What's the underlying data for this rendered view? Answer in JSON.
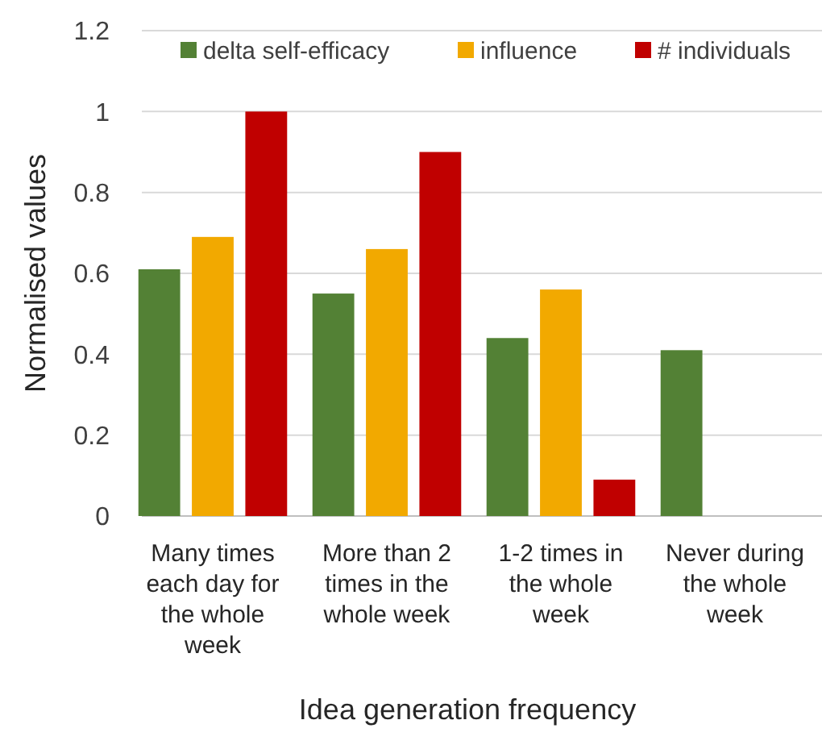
{
  "chart_data": {
    "type": "bar",
    "xlabel": "Idea generation frequency",
    "ylabel": "Normalised values",
    "categories": [
      "Many times\neach day for\nthe whole\nweek",
      "More than 2\ntimes in the\nwhole week",
      "1-2 times in\nthe whole\nweek",
      "Never during\nthe whole\nweek"
    ],
    "series": [
      {
        "name": "delta self-efficacy",
        "color": "#538135",
        "values": [
          0.61,
          0.55,
          0.44,
          0.41
        ]
      },
      {
        "name": "influence",
        "color": "#f2a900",
        "values": [
          0.69,
          0.66,
          0.56,
          null
        ]
      },
      {
        "name": "# individuals",
        "color": "#c00000",
        "values": [
          1.0,
          0.9,
          0.09,
          null
        ]
      }
    ],
    "ylim": [
      0,
      1.2
    ],
    "yticks": [
      0,
      0.2,
      0.4,
      0.6,
      0.8,
      1,
      1.2
    ],
    "grid": "y",
    "legend": "top right"
  }
}
